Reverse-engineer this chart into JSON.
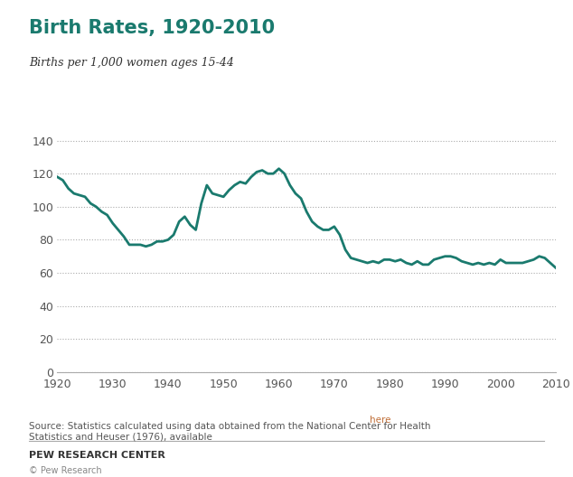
{
  "title": "Birth Rates, 1920-2010",
  "subtitle": "Births per 1,000 women ages 15-44",
  "title_color": "#1a7a6e",
  "line_color": "#1a7a6e",
  "background_color": "#ffffff",
  "ylabel": "",
  "xlabel": "",
  "ylim": [
    0,
    150
  ],
  "yticks": [
    0,
    20,
    40,
    60,
    80,
    100,
    120,
    140
  ],
  "xticks": [
    1920,
    1930,
    1940,
    1950,
    1960,
    1970,
    1980,
    1990,
    2000,
    2010
  ],
  "source_text": "Source: Statistics calculated using data obtained from the National Center for Health\nStatistics and Heuser (1976), available ",
  "source_link": "here",
  "footer": "PEW RESEARCH CENTER",
  "copyright": "© Pew Research",
  "years": [
    1920,
    1921,
    1922,
    1923,
    1924,
    1925,
    1926,
    1927,
    1928,
    1929,
    1930,
    1931,
    1932,
    1933,
    1934,
    1935,
    1936,
    1937,
    1938,
    1939,
    1940,
    1941,
    1942,
    1943,
    1944,
    1945,
    1946,
    1947,
    1948,
    1949,
    1950,
    1951,
    1952,
    1953,
    1954,
    1955,
    1956,
    1957,
    1958,
    1959,
    1960,
    1961,
    1962,
    1963,
    1964,
    1965,
    1966,
    1967,
    1968,
    1969,
    1970,
    1971,
    1972,
    1973,
    1974,
    1975,
    1976,
    1977,
    1978,
    1979,
    1980,
    1981,
    1982,
    1983,
    1984,
    1985,
    1986,
    1987,
    1988,
    1989,
    1990,
    1991,
    1992,
    1993,
    1994,
    1995,
    1996,
    1997,
    1998,
    1999,
    2000,
    2001,
    2002,
    2003,
    2004,
    2005,
    2006,
    2007,
    2008,
    2009,
    2010
  ],
  "values": [
    118,
    116,
    111,
    108,
    107,
    106,
    102,
    100,
    97,
    95,
    90,
    86,
    82,
    77,
    77,
    77,
    76,
    77,
    79,
    79,
    80,
    83,
    91,
    94,
    89,
    86,
    102,
    113,
    108,
    107,
    106,
    110,
    113,
    115,
    114,
    118,
    121,
    122,
    120,
    120,
    123,
    120,
    113,
    108,
    105,
    97,
    91,
    88,
    86,
    86,
    88,
    83,
    74,
    69,
    68,
    67,
    66,
    67,
    66,
    68,
    68,
    67,
    68,
    66,
    65,
    67,
    65,
    65,
    68,
    69,
    70,
    70,
    69,
    67,
    66,
    65,
    66,
    65,
    66,
    65,
    68,
    66,
    66,
    66,
    66,
    67,
    68,
    70,
    69,
    66,
    63
  ]
}
